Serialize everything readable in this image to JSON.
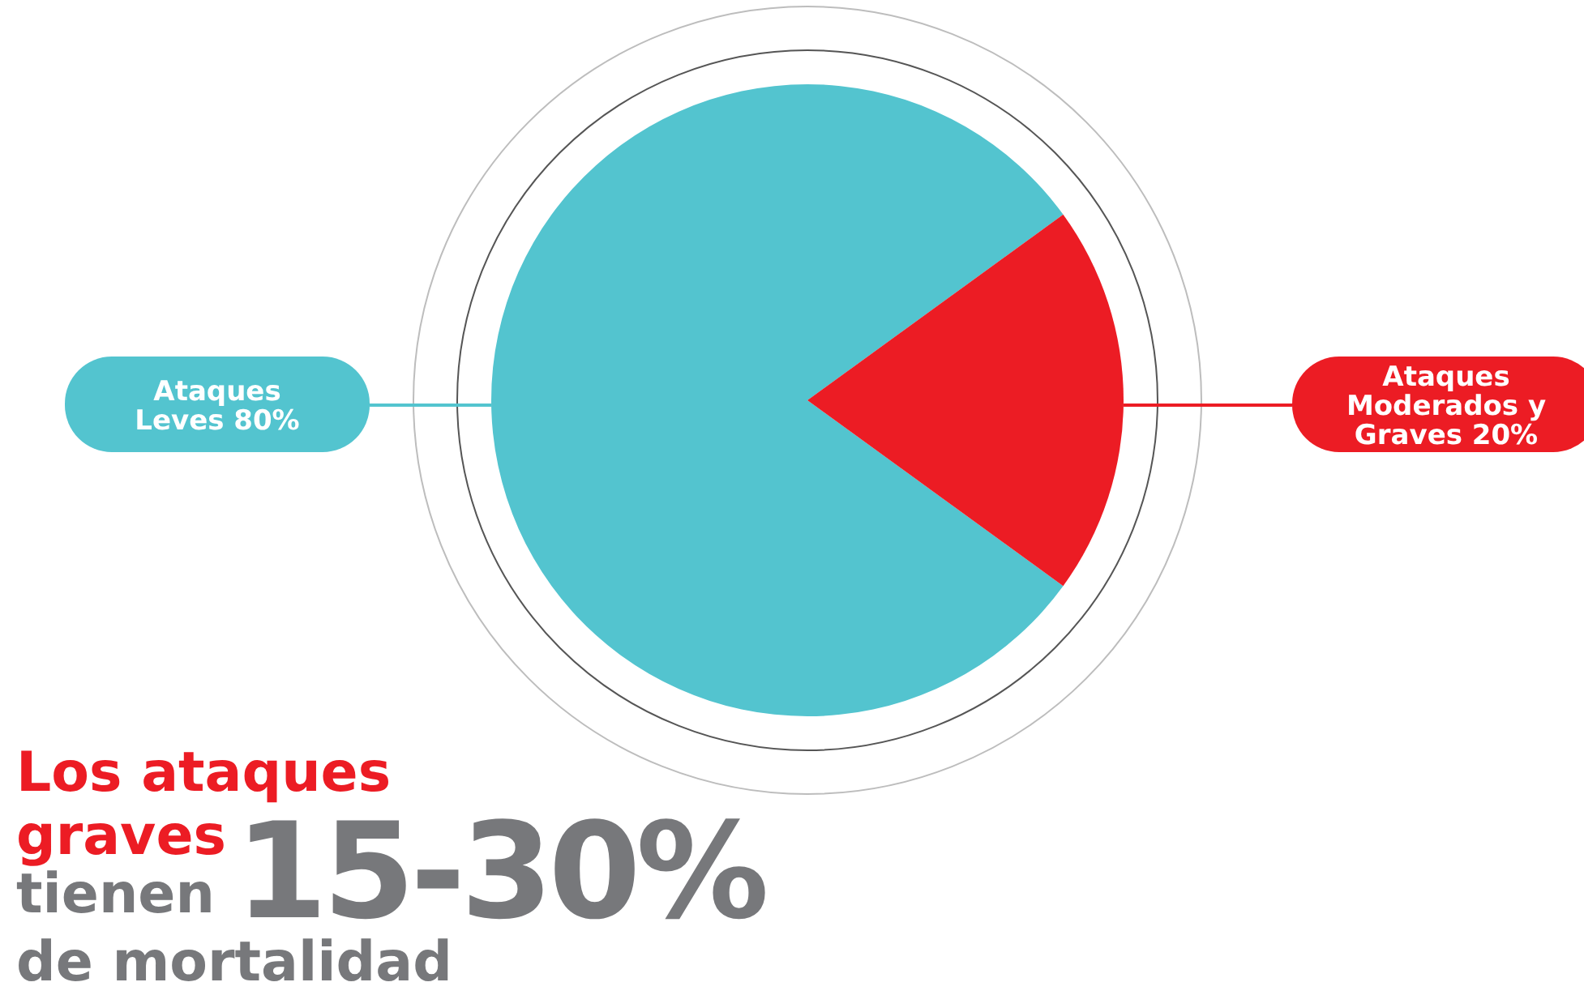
{
  "chart_data": {
    "type": "pie",
    "categories": [
      "Ataques Leves",
      "Ataques Moderados y Graves"
    ],
    "values": [
      80,
      20
    ],
    "value_labels": [
      "80%",
      "20%"
    ],
    "colors": [
      "#53c4cf",
      "#ec1c24"
    ],
    "annotations": [
      "Los ataques",
      "graves",
      "tienen",
      "15-30%",
      "de mortalidad"
    ]
  }
}
